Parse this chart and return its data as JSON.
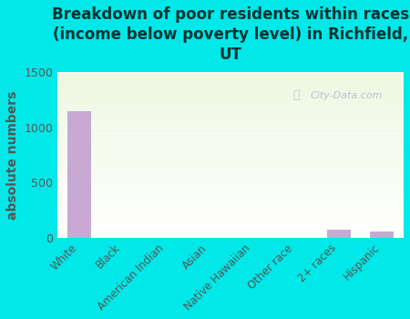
{
  "title": "Breakdown of poor residents within races\n(income below poverty level) in Richfield,\nUT",
  "categories": [
    "White",
    "Black",
    "American Indian",
    "Asian",
    "Native Hawaiian",
    "Other race",
    "2+ races",
    "Hispanic"
  ],
  "values": [
    1150,
    0,
    0,
    0,
    0,
    0,
    75,
    55
  ],
  "bar_color": "#c9a8d4",
  "ylabel": "absolute numbers",
  "ylim": [
    0,
    1500
  ],
  "yticks": [
    0,
    500,
    1000,
    1500
  ],
  "background_outer": "#00e8e8",
  "grid_color": "#e0e0e0",
  "watermark": "City-Data.com",
  "title_fontsize": 12,
  "ylabel_fontsize": 10,
  "title_color": "#003333",
  "axis_label_color": "#555555"
}
